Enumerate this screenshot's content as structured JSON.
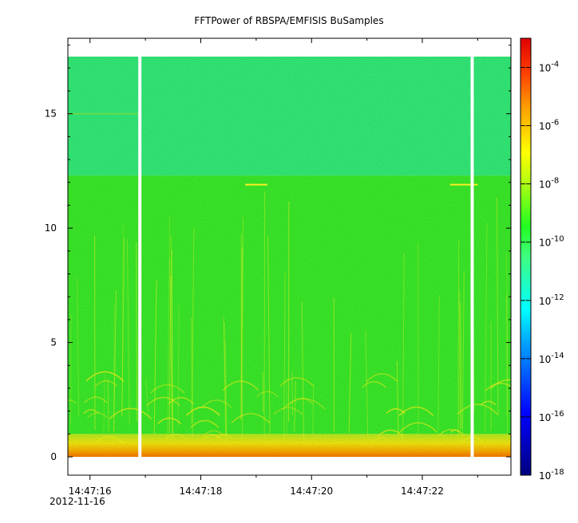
{
  "chart_data": {
    "type": "heatmap",
    "title": "FFTPower of RBSPA/EMFISIS  BuSamples",
    "xlabel": "",
    "ylabel": "",
    "x_start_date": "2012-11-16",
    "x_tick_labels": [
      "14:47:16",
      "14:47:18",
      "14:47:20",
      "14:47:22"
    ],
    "x_tick_seconds": [
      0,
      2,
      4,
      6
    ],
    "xlim_seconds": [
      -0.4,
      7.6
    ],
    "y_tick_values": [
      0,
      5,
      10,
      15
    ],
    "ylim": [
      -0.8,
      18.3
    ],
    "data_ymax": 17.5,
    "colorbar": {
      "scale": "log",
      "range": [
        1e-18,
        0.001
      ],
      "tick_exponents": [
        -18,
        -16,
        -14,
        -12,
        -10,
        -8,
        -6,
        -4
      ],
      "tick_base": "10"
    },
    "gaps_seconds": [
      0.9,
      6.9
    ],
    "bands": [
      {
        "ymin": 0,
        "ymax": 0.3,
        "level": "1e-6"
      },
      {
        "ymin": 0.3,
        "ymax": 1.0,
        "level": "1e-8"
      },
      {
        "ymin": 1.0,
        "ymax": 12.3,
        "level": "1e-10"
      },
      {
        "ymin": 12.3,
        "ymax": 17.5,
        "level": "1e-12"
      }
    ]
  }
}
